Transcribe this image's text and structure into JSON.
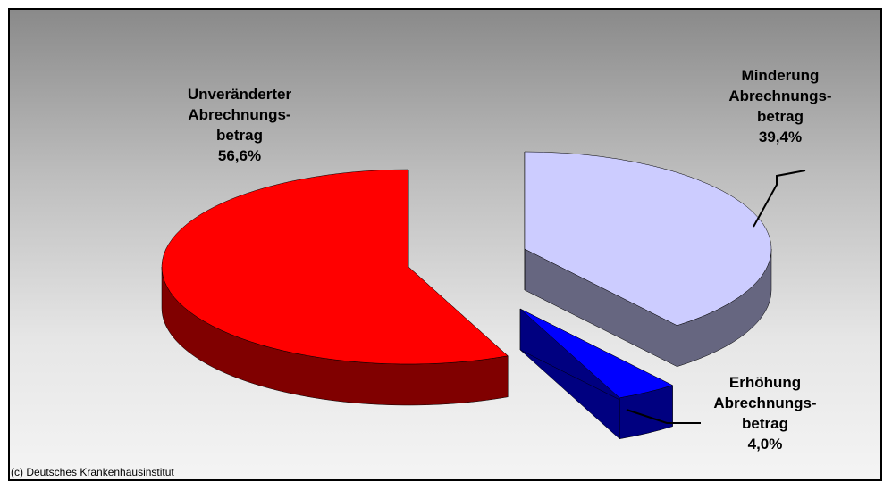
{
  "chart_data": {
    "type": "pie",
    "style": "3d-exploded",
    "slices": [
      {
        "label_lines": [
          "Unveränderter",
          "Abrechnungs-",
          "betrag"
        ],
        "value_label": "56,6%",
        "value": 56.6,
        "color": "#ff0000",
        "side_color": "#800000"
      },
      {
        "label_lines": [
          "Minderung",
          "Abrechnungs-",
          "betrag"
        ],
        "value_label": "39,4%",
        "value": 39.4,
        "color": "#ccccff",
        "side_color": "#666680"
      },
      {
        "label_lines": [
          "Erhöhung",
          "Abrechnungs-",
          "betrag"
        ],
        "value_label": "4,0%",
        "value": 4.0,
        "color": "#0000ff",
        "side_color": "#000080"
      }
    ]
  },
  "footer": {
    "copyright": "(c) Deutsches Krankenhausinstitut"
  }
}
